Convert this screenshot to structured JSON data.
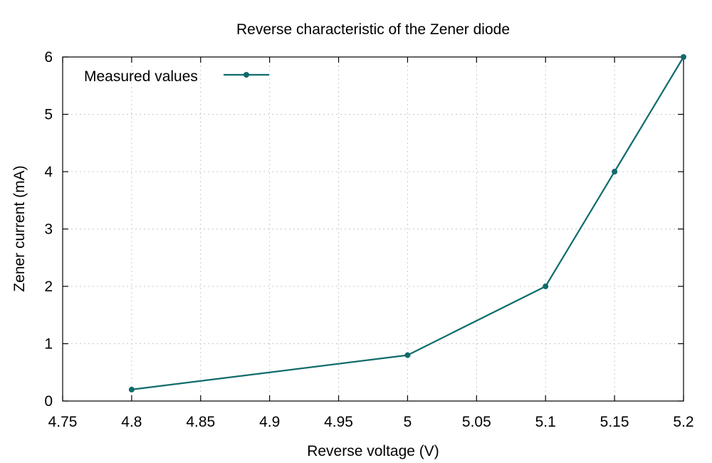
{
  "chart_data": {
    "type": "line",
    "title": "Reverse characteristic of the Zener diode",
    "xlabel": "Reverse voltage (V)",
    "ylabel": "Zener current (mA)",
    "xlim": [
      4.75,
      5.2
    ],
    "ylim": [
      0,
      6
    ],
    "x_ticks": [
      "4.75",
      "4.8",
      "4.85",
      "4.9",
      "4.95",
      "5",
      "5.05",
      "5.1",
      "5.15",
      "5.2"
    ],
    "y_ticks": [
      "0",
      "1",
      "2",
      "3",
      "4",
      "5",
      "6"
    ],
    "grid": true,
    "legend_position": "top-left",
    "series": [
      {
        "name": "Measured values",
        "color": "#0f6b6b",
        "x": [
          4.8,
          5.0,
          5.1,
          5.15,
          5.2
        ],
        "y": [
          0.2,
          0.8,
          2.0,
          4.0,
          6.0
        ]
      }
    ]
  }
}
